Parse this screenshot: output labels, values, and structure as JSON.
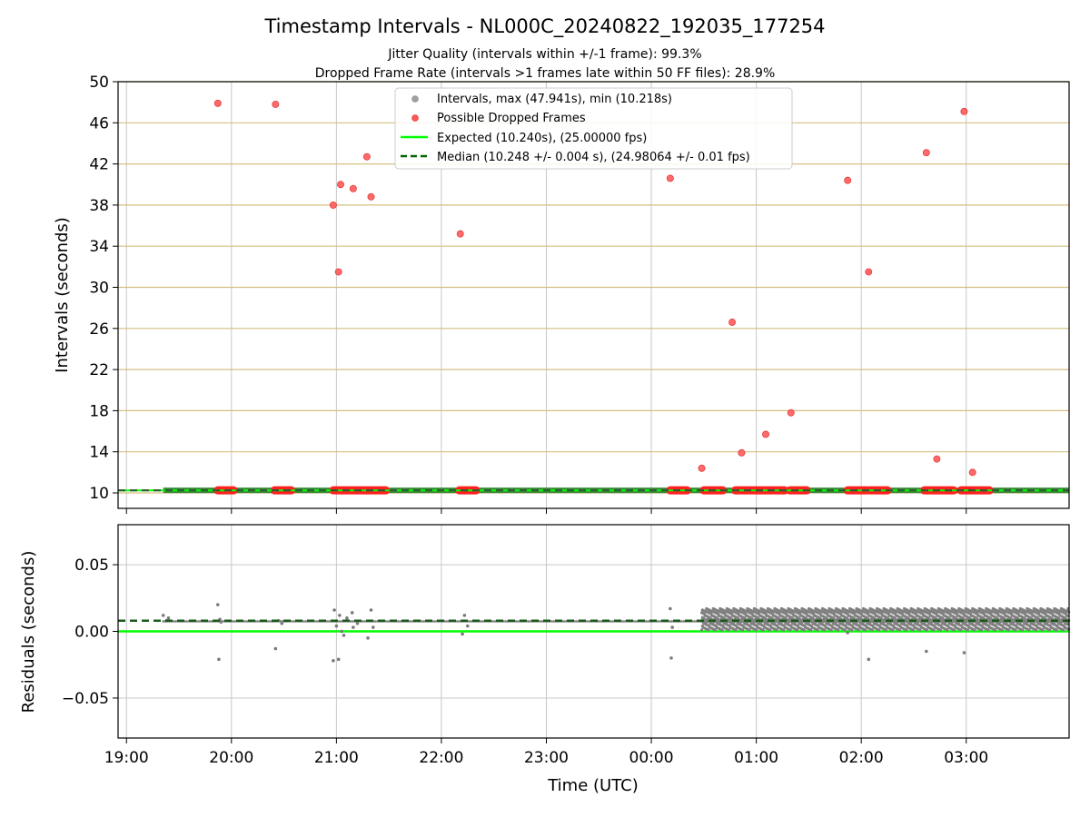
{
  "chart_data": [
    {
      "type": "scatter",
      "title": "Timestamp Intervals - NL000C_20240822_192035_177254",
      "subtitle_lines": [
        "Jitter Quality (intervals within +/-1 frame): 99.3%",
        "Dropped Frame Rate (intervals >1 frames late within 50 FF files): 28.9%"
      ],
      "xlabel": "",
      "ylabel": "Intervals (seconds)",
      "x_range_hours": [
        18.92,
        27.98
      ],
      "ylim": [
        8.5,
        50
      ],
      "yticks": [
        10,
        14,
        18,
        22,
        26,
        30,
        34,
        38,
        42,
        46,
        50
      ],
      "ytick_labels": [
        "10",
        "14",
        "18",
        "22",
        "26",
        "30",
        "34",
        "38",
        "42",
        "46",
        "50"
      ],
      "xticks_hours": [
        19,
        20,
        21,
        22,
        23,
        24,
        25,
        26,
        27
      ],
      "grid": "horizontal lines gold, vertical lines gray",
      "legend_placement": "top-center",
      "legend": [
        {
          "label": "Intervals, max (47.941s), min (10.218s)",
          "marker": "circle",
          "color": "#a0a0a0"
        },
        {
          "label": "Possible Dropped Frames",
          "marker": "circle",
          "color": "#ff4040"
        },
        {
          "label": "Expected (10.240s), (25.00000 fps)",
          "marker": "line",
          "color": "#00ff00"
        },
        {
          "label": "Median (10.248 +/- 0.004 s), (24.98064 +/- 0.01 fps)",
          "marker": "dashed-line",
          "color": "#006400"
        }
      ],
      "expected_value": 10.24,
      "median_value": 10.248,
      "interval_band": {
        "x_start_hours": 19.35,
        "x_end_hours": 27.98,
        "value": 10.25
      },
      "dropped_segments_hours": [
        [
          19.87,
          20.02
        ],
        [
          20.41,
          20.57
        ],
        [
          20.97,
          21.47
        ],
        [
          22.17,
          22.33
        ],
        [
          24.18,
          24.34
        ],
        [
          24.5,
          24.68
        ],
        [
          24.8,
          25.09
        ],
        [
          25.1,
          25.27
        ],
        [
          25.32,
          25.48
        ],
        [
          25.87,
          26.05
        ],
        [
          26.07,
          26.25
        ],
        [
          26.6,
          26.88
        ],
        [
          26.95,
          27.22
        ]
      ],
      "dropped_points": [
        {
          "x": 19.87,
          "y": 47.9
        },
        {
          "x": 20.42,
          "y": 47.8
        },
        {
          "x": 20.97,
          "y": 38.0
        },
        {
          "x": 21.02,
          "y": 31.5
        },
        {
          "x": 21.04,
          "y": 40.0
        },
        {
          "x": 21.16,
          "y": 39.6
        },
        {
          "x": 21.29,
          "y": 42.7
        },
        {
          "x": 21.33,
          "y": 38.8
        },
        {
          "x": 22.18,
          "y": 35.2
        },
        {
          "x": 24.18,
          "y": 40.6
        },
        {
          "x": 24.48,
          "y": 12.4
        },
        {
          "x": 24.77,
          "y": 26.6
        },
        {
          "x": 24.86,
          "y": 13.9
        },
        {
          "x": 25.09,
          "y": 15.7
        },
        {
          "x": 25.33,
          "y": 17.8
        },
        {
          "x": 25.87,
          "y": 40.4
        },
        {
          "x": 26.07,
          "y": 31.5
        },
        {
          "x": 26.62,
          "y": 43.1
        },
        {
          "x": 26.72,
          "y": 13.3
        },
        {
          "x": 26.98,
          "y": 47.1
        },
        {
          "x": 27.06,
          "y": 12.0
        }
      ]
    },
    {
      "type": "scatter",
      "xlabel": "Time (UTC)",
      "ylabel": "Residuals (seconds)",
      "x_range_hours": [
        18.92,
        27.98
      ],
      "ylim": [
        -0.08,
        0.08
      ],
      "yticks": [
        0.05,
        0.0,
        -0.05
      ],
      "ytick_labels": [
        "0.05",
        "0.00",
        "−0.05"
      ],
      "xticks_hours": [
        19,
        20,
        21,
        22,
        23,
        24,
        25,
        26,
        27
      ],
      "xtick_labels": [
        "19:00",
        "20:00",
        "21:00",
        "22:00",
        "23:00",
        "00:00",
        "01:00",
        "02:00",
        "03:00"
      ],
      "grid": "gray",
      "expected_residual": 0.0,
      "median_residual": 0.008,
      "dense_region_hours": [
        24.48,
        27.98
      ],
      "dense_levels": [
        0.002,
        0.005,
        0.008,
        0.011,
        0.014,
        0.016
      ],
      "residual_points": [
        {
          "x": 19.35,
          "y": 0.012
        },
        {
          "x": 19.38,
          "y": 0.008
        },
        {
          "x": 19.4,
          "y": 0.01
        },
        {
          "x": 19.87,
          "y": 0.02
        },
        {
          "x": 19.88,
          "y": -0.021
        },
        {
          "x": 19.89,
          "y": 0.009
        },
        {
          "x": 19.9,
          "y": 0.007
        },
        {
          "x": 20.42,
          "y": -0.013
        },
        {
          "x": 20.45,
          "y": 0.008
        },
        {
          "x": 20.48,
          "y": 0.006
        },
        {
          "x": 20.97,
          "y": -0.022
        },
        {
          "x": 20.98,
          "y": 0.016
        },
        {
          "x": 21.0,
          "y": 0.004
        },
        {
          "x": 21.02,
          "y": -0.021
        },
        {
          "x": 21.03,
          "y": 0.012
        },
        {
          "x": 21.05,
          "y": 0.0
        },
        {
          "x": 21.07,
          "y": -0.003
        },
        {
          "x": 21.1,
          "y": 0.01
        },
        {
          "x": 21.15,
          "y": 0.014
        },
        {
          "x": 21.16,
          "y": 0.003
        },
        {
          "x": 21.2,
          "y": 0.006
        },
        {
          "x": 21.3,
          "y": -0.005
        },
        {
          "x": 21.33,
          "y": 0.016
        },
        {
          "x": 21.35,
          "y": 0.003
        },
        {
          "x": 22.2,
          "y": -0.002
        },
        {
          "x": 22.22,
          "y": 0.012
        },
        {
          "x": 22.25,
          "y": 0.004
        },
        {
          "x": 24.18,
          "y": 0.017
        },
        {
          "x": 24.19,
          "y": -0.02
        },
        {
          "x": 24.2,
          "y": 0.003
        },
        {
          "x": 26.07,
          "y": -0.021
        },
        {
          "x": 26.62,
          "y": -0.015
        },
        {
          "x": 26.98,
          "y": -0.016
        },
        {
          "x": 25.87,
          "y": -0.001
        }
      ]
    }
  ]
}
